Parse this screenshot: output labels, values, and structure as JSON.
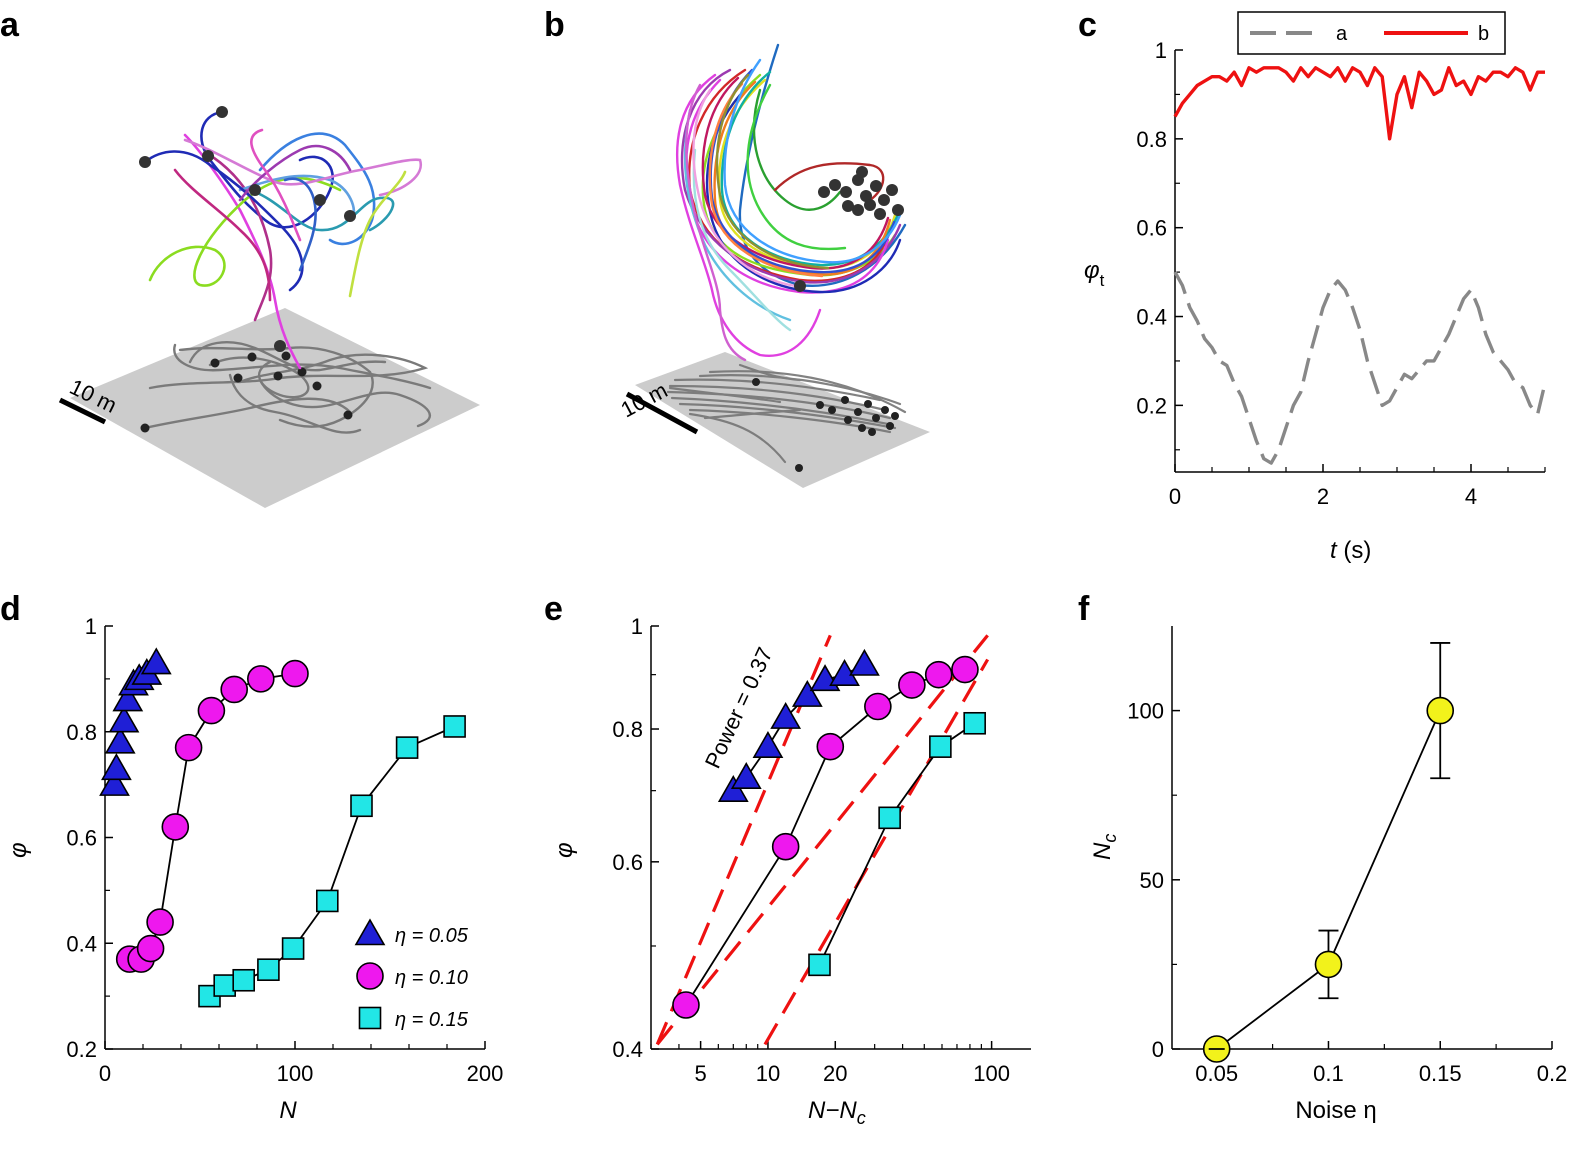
{
  "figure": {
    "panel_letters": [
      "a",
      "b",
      "c",
      "d",
      "e",
      "f"
    ],
    "scale_a": "10 m",
    "scale_b": "10 m"
  },
  "colors": {
    "red": "#ee1111",
    "gray": "#888888",
    "blue": "#1f1fd6",
    "magenta": "#ee18ee",
    "cyan": "#22e6e6",
    "yellow": "#f2f21b",
    "plane": "#cccccc",
    "shadow": "#7a7a7a"
  },
  "chart_data": [
    {
      "id": "c",
      "type": "line",
      "xlabel_var": "t",
      "xlabel_unit": "(s)",
      "ylabel_var": "φ",
      "ylabel_sub": "t",
      "xlim": [
        0,
        5
      ],
      "ylim": [
        0.05,
        1
      ],
      "xticks": [
        0,
        2,
        4
      ],
      "yticks": [
        0.2,
        0.4,
        0.6,
        0.8,
        1
      ],
      "ytick_labels": [
        "0.2",
        "0.4",
        "0.6",
        "0.8",
        "1"
      ],
      "legend_position": "top",
      "series": [
        {
          "name": "a",
          "style": "dashed",
          "color": "#888888",
          "x": [
            0,
            0.1,
            0.2,
            0.3,
            0.4,
            0.5,
            0.6,
            0.7,
            0.8,
            0.9,
            1.0,
            1.1,
            1.2,
            1.3,
            1.4,
            1.5,
            1.6,
            1.7,
            1.8,
            1.9,
            2.0,
            2.1,
            2.2,
            2.3,
            2.4,
            2.5,
            2.6,
            2.7,
            2.8,
            2.9,
            3.0,
            3.1,
            3.2,
            3.3,
            3.4,
            3.5,
            3.6,
            3.7,
            3.8,
            3.9,
            4.0,
            4.1,
            4.2,
            4.3,
            4.4,
            4.5,
            4.6,
            4.7,
            4.8,
            4.9,
            5.0
          ],
          "y": [
            0.5,
            0.47,
            0.42,
            0.39,
            0.35,
            0.33,
            0.3,
            0.29,
            0.25,
            0.22,
            0.17,
            0.12,
            0.08,
            0.07,
            0.1,
            0.15,
            0.2,
            0.23,
            0.3,
            0.36,
            0.42,
            0.46,
            0.48,
            0.46,
            0.42,
            0.37,
            0.3,
            0.25,
            0.2,
            0.21,
            0.24,
            0.27,
            0.26,
            0.28,
            0.3,
            0.3,
            0.33,
            0.36,
            0.4,
            0.44,
            0.46,
            0.42,
            0.36,
            0.32,
            0.3,
            0.28,
            0.25,
            0.24,
            0.2,
            0.18,
            0.25
          ]
        },
        {
          "name": "b",
          "style": "solid",
          "color": "#ee1111",
          "x": [
            0,
            0.1,
            0.2,
            0.3,
            0.4,
            0.5,
            0.6,
            0.7,
            0.8,
            0.9,
            1.0,
            1.1,
            1.2,
            1.3,
            1.4,
            1.5,
            1.6,
            1.7,
            1.8,
            1.9,
            2.0,
            2.1,
            2.2,
            2.3,
            2.4,
            2.5,
            2.6,
            2.7,
            2.8,
            2.9,
            3.0,
            3.1,
            3.2,
            3.3,
            3.4,
            3.5,
            3.6,
            3.7,
            3.8,
            3.9,
            4.0,
            4.1,
            4.2,
            4.3,
            4.4,
            4.5,
            4.6,
            4.7,
            4.8,
            4.9,
            5.0
          ],
          "y": [
            0.85,
            0.88,
            0.9,
            0.92,
            0.93,
            0.94,
            0.94,
            0.93,
            0.95,
            0.92,
            0.96,
            0.95,
            0.96,
            0.96,
            0.96,
            0.95,
            0.93,
            0.96,
            0.94,
            0.96,
            0.95,
            0.94,
            0.96,
            0.93,
            0.96,
            0.95,
            0.92,
            0.96,
            0.94,
            0.8,
            0.9,
            0.94,
            0.87,
            0.95,
            0.93,
            0.9,
            0.91,
            0.96,
            0.92,
            0.93,
            0.9,
            0.94,
            0.93,
            0.95,
            0.95,
            0.94,
            0.96,
            0.95,
            0.91,
            0.95,
            0.95
          ]
        }
      ]
    },
    {
      "id": "d",
      "type": "scatter",
      "xlabel": "N",
      "ylabel": "φ",
      "xlim": [
        0,
        200
      ],
      "ylim": [
        0.2,
        1
      ],
      "xticks": [
        0,
        100,
        200
      ],
      "yticks": [
        0.2,
        0.4,
        0.6,
        0.8,
        1
      ],
      "ytick_labels": [
        "0.2",
        "0.4",
        "0.6",
        "0.8",
        "1"
      ],
      "legend_position": "bottom-right",
      "series": [
        {
          "name": "η = 0.05",
          "marker": "triangle",
          "color": "#1f1fd6",
          "connected": false,
          "x": [
            5,
            6,
            8,
            10,
            12,
            15,
            18,
            22,
            27
          ],
          "y": [
            0.7,
            0.73,
            0.78,
            0.82,
            0.86,
            0.89,
            0.9,
            0.91,
            0.93
          ]
        },
        {
          "name": "η = 0.10",
          "marker": "circle",
          "color": "#ee18ee",
          "connected": true,
          "x": [
            13,
            19,
            24,
            29,
            37,
            44,
            56,
            68,
            82,
            100
          ],
          "y": [
            0.37,
            0.37,
            0.39,
            0.44,
            0.62,
            0.77,
            0.84,
            0.88,
            0.9,
            0.91
          ]
        },
        {
          "name": "η = 0.15",
          "marker": "square",
          "color": "#22e6e6",
          "connected": true,
          "x": [
            55,
            63,
            73,
            86,
            99,
            117,
            135,
            159,
            184
          ],
          "y": [
            0.3,
            0.32,
            0.33,
            0.35,
            0.39,
            0.48,
            0.66,
            0.77,
            0.81
          ]
        }
      ]
    },
    {
      "id": "e",
      "type": "scatter",
      "xlabel": "N−N",
      "xlabel_sub": "c",
      "ylabel": "φ",
      "xscale": "log",
      "yscale": "log",
      "xlim": [
        3,
        150
      ],
      "ylim": [
        0.4,
        1
      ],
      "xticks": [
        5,
        10,
        20,
        100
      ],
      "xtick_labels": [
        "5",
        "10",
        "20",
        "100"
      ],
      "yticks": [
        0.4,
        0.6,
        0.8,
        1
      ],
      "ytick_labels": [
        "0.4",
        "0.6",
        "0.8",
        "1"
      ],
      "annotation": "Power = 0.37",
      "series": [
        {
          "name": "η = 0.05",
          "marker": "triangle",
          "color": "#1f1fd6",
          "x": [
            7,
            8,
            10,
            12,
            15,
            18,
            22,
            27
          ],
          "y": [
            0.7,
            0.72,
            0.77,
            0.82,
            0.86,
            0.89,
            0.9,
            0.92
          ]
        },
        {
          "name": "η = 0.10",
          "marker": "circle",
          "color": "#ee18ee",
          "x": [
            4.3,
            12,
            19,
            31,
            44,
            58,
            76
          ],
          "y": [
            0.44,
            0.62,
            0.77,
            0.84,
            0.88,
            0.9,
            0.91
          ]
        },
        {
          "name": "η = 0.15",
          "marker": "square",
          "color": "#22e6e6",
          "x": [
            17,
            35,
            59,
            84
          ],
          "y": [
            0.48,
            0.66,
            0.77,
            0.81
          ]
        }
      ],
      "fit_lines": [
        {
          "x": [
            3.2,
            19
          ],
          "y": [
            0.404,
            0.98
          ]
        },
        {
          "x": [
            3.2,
            96
          ],
          "y": [
            0.404,
            0.98
          ]
        },
        {
          "x": [
            9.7,
            96
          ],
          "y": [
            0.404,
            0.93
          ]
        }
      ]
    },
    {
      "id": "f",
      "type": "line",
      "xlabel": "Noise η",
      "ylabel": "N",
      "ylabel_sub": "c",
      "xlim": [
        0.03,
        0.2
      ],
      "ylim": [
        0,
        125
      ],
      "xticks": [
        0.05,
        0.1,
        0.15,
        0.2
      ],
      "xtick_labels": [
        "0.05",
        "0.1",
        "0.15",
        "0.2"
      ],
      "yticks": [
        0,
        50,
        100
      ],
      "series": [
        {
          "name": "Nc",
          "marker": "circle",
          "color": "#f2f21b",
          "x": [
            0.05,
            0.1,
            0.15
          ],
          "y": [
            0,
            25,
            100
          ],
          "error": [
            1,
            10,
            20
          ]
        }
      ]
    }
  ]
}
